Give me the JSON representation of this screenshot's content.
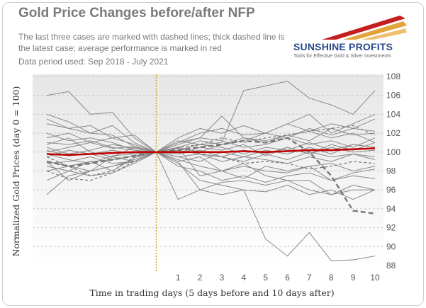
{
  "title": "Gold Price Changes before/after NFP",
  "subtitle": "The last three cases are marked with dashed lines; thick dashed line is the latest case; average performance is marked in red",
  "data_period": "Data period used: Sep 2018 - July 2021",
  "logo": {
    "name": "SUNSHINE PROFITS",
    "tagline": "Tools for Effective Gold & Silver Investments",
    "colors": [
      "#c41e1e",
      "#e2a33a",
      "#f0c070"
    ]
  },
  "colors": {
    "series": "#8a8a8a",
    "dashed": "#777777",
    "average": "#c00000",
    "event_line": "#c8a000",
    "plot_bg_top": "#e9e9e9",
    "plot_bg_bottom": "#ffffff",
    "grid": "#c8c8c8"
  },
  "chart_data": {
    "type": "line",
    "xlabel": "Time in trading days (5 days before and 10 days after)",
    "ylabel": "Normalized Gold Prices (day 0 = 100)",
    "x": [
      -5,
      -4,
      -3,
      -2,
      -1,
      0,
      1,
      2,
      3,
      4,
      5,
      6,
      7,
      8,
      9,
      10
    ],
    "x_tick_labels": [
      "1",
      "2",
      "3",
      "4",
      "5",
      "6",
      "7",
      "8",
      "9",
      "10"
    ],
    "x_tick_values": [
      1,
      2,
      3,
      4,
      5,
      6,
      7,
      8,
      9,
      10
    ],
    "ylim": [
      88,
      108
    ],
    "y_ticks": [
      88,
      90,
      92,
      94,
      96,
      98,
      100,
      102,
      104,
      106,
      108
    ],
    "y_axis_side": "right",
    "event_line_x": 0,
    "grid": "horizontal dashed",
    "series": [
      {
        "values": [
          106.0,
          106.4,
          104.0,
          104.2,
          101.5,
          100.0,
          101.2,
          100.8,
          101.0,
          106.5,
          107.0,
          107.5,
          105.7,
          105.0,
          104.0,
          106.5
        ]
      },
      {
        "values": [
          104.0,
          103.2,
          102.0,
          102.8,
          101.0,
          100.0,
          101.0,
          102.0,
          102.5,
          101.8,
          102.0,
          103.0,
          104.0,
          102.0,
          103.0,
          104.0
        ]
      },
      {
        "values": [
          103.0,
          102.5,
          102.8,
          101.5,
          101.8,
          100.0,
          100.8,
          101.5,
          103.8,
          101.5,
          101.0,
          101.8,
          101.2,
          102.5,
          101.8,
          102.0
        ]
      },
      {
        "values": [
          101.5,
          102.0,
          101.0,
          101.5,
          100.8,
          100.0,
          100.5,
          101.2,
          100.8,
          101.5,
          101.2,
          101.8,
          102.2,
          101.5,
          102.0,
          101.0
        ]
      },
      {
        "values": [
          101.0,
          100.8,
          101.2,
          100.5,
          100.2,
          100.0,
          100.2,
          100.8,
          100.5,
          99.8,
          100.5,
          100.2,
          101.0,
          100.2,
          100.8,
          100.5
        ]
      },
      {
        "values": [
          100.5,
          99.8,
          100.2,
          100.8,
          100.4,
          100.0,
          99.8,
          100.2,
          99.5,
          100.2,
          99.8,
          100.5,
          99.8,
          100.5,
          100.0,
          100.2
        ]
      },
      {
        "values": [
          99.5,
          100.2,
          99.8,
          99.2,
          99.6,
          100.0,
          99.5,
          99.8,
          99.0,
          99.5,
          99.2,
          98.8,
          99.5,
          99.0,
          99.8,
          99.2
        ]
      },
      {
        "values": [
          99.0,
          98.5,
          98.0,
          98.5,
          99.2,
          100.0,
          99.2,
          98.5,
          98.0,
          98.5,
          98.0,
          97.8,
          98.5,
          98.8,
          98.0,
          98.5
        ]
      },
      {
        "values": [
          98.5,
          98.0,
          97.5,
          97.8,
          98.8,
          100.0,
          99.0,
          96.0,
          95.5,
          96.0,
          95.8,
          96.5,
          95.5,
          96.0,
          95.0,
          96.0
        ]
      },
      {
        "values": [
          95.5,
          97.5,
          98.0,
          98.5,
          99.0,
          100.0,
          95.0,
          96.0,
          96.8,
          97.0,
          96.5,
          97.0,
          96.0,
          95.5,
          96.5,
          96.0
        ]
      },
      {
        "values": [
          97.0,
          98.0,
          99.0,
          99.2,
          99.6,
          100.0,
          98.8,
          97.0,
          96.5,
          96.0,
          90.8,
          89.0,
          91.5,
          88.5,
          88.6,
          89.0
        ]
      },
      {
        "values": [
          99.0,
          97.0,
          98.0,
          99.5,
          99.0,
          100.0,
          100.5,
          97.5,
          98.0,
          97.2,
          98.5,
          98.0,
          98.5,
          97.0,
          97.8,
          98.2
        ]
      },
      {
        "values": [
          100.8,
          101.5,
          100.0,
          99.5,
          100.5,
          100.0,
          101.0,
          101.5,
          101.2,
          100.5,
          100.8,
          101.5,
          100.8,
          101.2,
          100.5,
          101.5
        ]
      },
      {
        "values": [
          98.8,
          99.0,
          99.5,
          98.8,
          99.0,
          100.0,
          99.0,
          99.5,
          98.0,
          98.8,
          97.5,
          97.0,
          97.0,
          95.5,
          96.0,
          96.0
        ]
      },
      {
        "values": [
          102.0,
          101.2,
          101.5,
          101.0,
          100.2,
          100.0,
          100.5,
          100.0,
          100.8,
          101.2,
          102.0,
          101.5,
          102.5,
          101.8,
          102.5,
          102.2
        ]
      },
      {
        "values": [
          100.0,
          100.5,
          101.0,
          100.4,
          100.6,
          100.0,
          99.5,
          99.0,
          100.0,
          99.5,
          100.2,
          99.8,
          100.5,
          99.8,
          100.8,
          100.5
        ]
      },
      {
        "values": [
          99.8,
          99.2,
          98.8,
          99.6,
          99.8,
          100.0,
          99.8,
          100.5,
          100.2,
          100.8,
          99.6,
          100.5,
          99.8,
          100.8,
          100.2,
          101.0
        ]
      },
      {
        "values": [
          103.5,
          102.5,
          102.0,
          101.8,
          100.6,
          100.0,
          101.5,
          102.5,
          102.0,
          102.8,
          102.0,
          103.0,
          102.2,
          103.0,
          102.5,
          103.5
        ]
      },
      {
        "values": [
          100.2,
          99.6,
          99.8,
          100.2,
          99.8,
          100.0,
          100.4,
          99.8,
          99.5,
          99.0,
          99.8,
          99.2,
          100.0,
          99.5,
          99.8,
          99.5
        ]
      },
      {
        "values": [
          98.0,
          98.5,
          99.0,
          98.0,
          99.4,
          100.0,
          98.5,
          98.0,
          97.0,
          97.5,
          96.8,
          97.5,
          97.8,
          97.0,
          97.5,
          97.2
        ]
      }
    ],
    "dashed_series": [
      {
        "values": [
          99.5,
          98.5,
          97.5,
          98.0,
          99.5,
          100.0,
          100.5,
          100.8,
          101.5,
          101.0,
          101.5,
          101.8,
          102.2,
          102.5,
          102.8,
          101.8
        ],
        "thick": false
      },
      {
        "values": [
          98.0,
          97.2,
          97.0,
          97.8,
          99.0,
          100.0,
          100.2,
          99.8,
          99.5,
          98.8,
          99.0,
          98.8,
          98.2,
          98.5,
          99.0,
          98.8
        ],
        "thick": false
      },
      {
        "values": [
          99.0,
          98.5,
          98.8,
          99.2,
          99.6,
          100.0,
          100.2,
          100.5,
          100.8,
          101.2,
          101.0,
          101.5,
          100.0,
          97.5,
          93.8,
          93.5
        ],
        "thick": true
      }
    ],
    "average": {
      "values": [
        99.8,
        99.7,
        99.8,
        99.9,
        100.0,
        100.0,
        100.0,
        100.0,
        100.0,
        100.1,
        100.0,
        100.1,
        100.2,
        100.2,
        100.3,
        100.4
      ]
    }
  }
}
